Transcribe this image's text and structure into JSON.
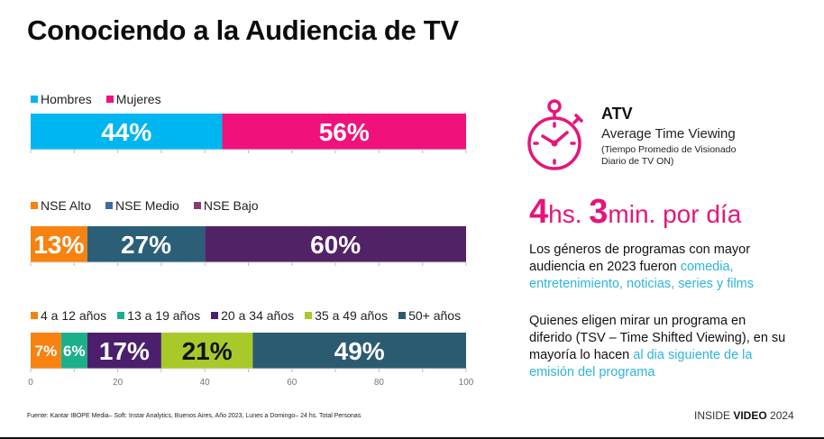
{
  "title": "Conociendo a la Audiencia de TV",
  "chart_data": [
    {
      "type": "bar",
      "orientation": "horizontal-stacked-100",
      "name": "Género",
      "categories": [
        "Hombres",
        "Mujeres"
      ],
      "values": [
        44,
        56
      ],
      "labels": [
        "44%",
        "56%"
      ],
      "colors": [
        "#00b6f0",
        "#f0127a"
      ],
      "label_colors": [
        "#ffffff",
        "#ffffff"
      ],
      "xlim": [
        0,
        100
      ]
    },
    {
      "type": "bar",
      "orientation": "horizontal-stacked-100",
      "name": "NSE",
      "categories": [
        "NSE Alto",
        "NSE Medio",
        "NSE Bajo"
      ],
      "values": [
        13,
        27,
        60
      ],
      "labels": [
        "13%",
        "27%",
        "60%"
      ],
      "colors": [
        "#f7820f",
        "#2b5f78",
        "#522267"
      ],
      "legend_colors": [
        "#f7820f",
        "#3f6aa8",
        "#8a3a78"
      ],
      "label_colors": [
        "#ffffff",
        "#ffffff",
        "#ffffff"
      ],
      "xlim": [
        0,
        100
      ]
    },
    {
      "type": "bar",
      "orientation": "horizontal-stacked-100",
      "name": "Edad",
      "categories": [
        "4 a 12 años",
        "13 a 19 años",
        "20 a 34 años",
        "35 a 49 años",
        "50+ años"
      ],
      "values": [
        7,
        6,
        17,
        21,
        49
      ],
      "labels": [
        "7%",
        "6%",
        "17%",
        "21%",
        "49%"
      ],
      "colors": [
        "#f7820f",
        "#1cb08a",
        "#4b1f6b",
        "#a8c92a",
        "#2b5b70"
      ],
      "label_colors": [
        "#ffffff",
        "#ffffff",
        "#ffffff",
        "#111111",
        "#ffffff"
      ],
      "xlim": [
        0,
        100
      ],
      "xticks": [
        0,
        20,
        40,
        60,
        80,
        100
      ],
      "grid": false
    }
  ],
  "atv": {
    "icon": "stopwatch-icon",
    "title": "ATV",
    "subtitle": "Average Time Viewing",
    "note": "(Tiempo Promedio de Visionado Diario de TV ON)",
    "hours_value": "4",
    "hours_unit": "hs.",
    "minutes_value": "3",
    "minutes_unit": "min. por día",
    "accent_color": "#e5157a"
  },
  "paragraph1": {
    "text": "Los géneros de programas con mayor audiencia en 2023 fueron ",
    "highlight": "comedia, entretenimiento, noticias, series y films"
  },
  "paragraph2": {
    "text": "Quienes eligen mirar un programa en diferido (TSV – Time Shifted Viewing), en su mayoría lo hacen ",
    "highlight": "al dia siguiente de la emisión del programa"
  },
  "highlight_color": "#2cb5dc",
  "footer": "Fuente: Kantar IBOPE Media– Soft: Instar Analytics, Buenos Aires, Año 2023, Lunes a Domingo– 24 hs. Total Personas",
  "brand": {
    "prefix": "INSIDE ",
    "bold": "VIDEO",
    "suffix": " 2024"
  }
}
